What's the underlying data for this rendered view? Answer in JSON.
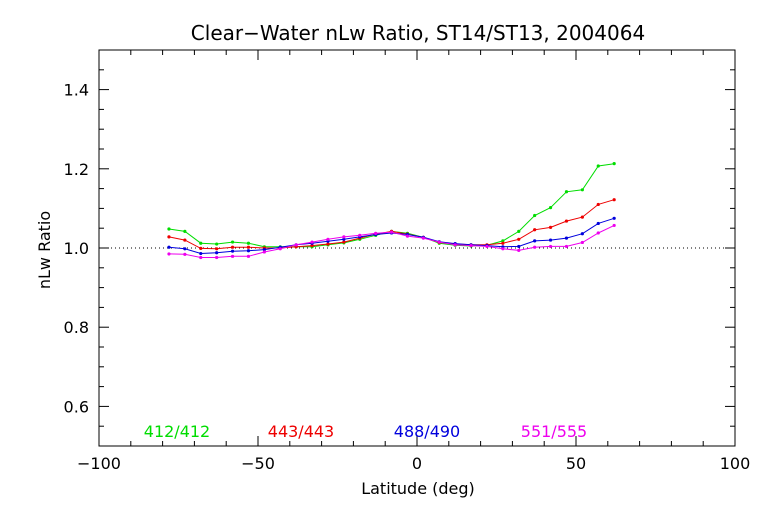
{
  "chart_data": {
    "type": "line",
    "title": "Clear−Water nLw Ratio, ST14/ST13, 2004064",
    "xlabel": "Latitude (deg)",
    "ylabel": "nLw Ratio",
    "xlim": [
      -100,
      100
    ],
    "ylim": [
      0.5,
      1.5
    ],
    "x_ticks": [
      -100,
      -50,
      0,
      50,
      100
    ],
    "x_tick_labels": [
      "−100",
      "−50",
      "0",
      "50",
      "100"
    ],
    "y_ticks": [
      0.6,
      0.8,
      1.0,
      1.2,
      1.4
    ],
    "y_tick_labels": [
      "0.6",
      "0.8",
      "1.0",
      "1.2",
      "1.4"
    ],
    "reference_line": 1.0,
    "grid": false,
    "legend_placement": "bottom, inside plot",
    "x": [
      -78,
      -73,
      -68,
      -63,
      -58,
      -53,
      -48,
      -43,
      -38,
      -33,
      -28,
      -23,
      -18,
      -13,
      -8,
      -3,
      2,
      7,
      12,
      17,
      22,
      27,
      32,
      37,
      42,
      47,
      52,
      57,
      62
    ],
    "series": [
      {
        "name": "412/412",
        "color": "#00dd00",
        "values": [
          1.048,
          1.042,
          1.012,
          1.01,
          1.015,
          1.012,
          1.003,
          1.003,
          1.003,
          1.003,
          1.008,
          1.013,
          1.022,
          1.032,
          1.042,
          1.037,
          1.027,
          1.012,
          1.007,
          1.005,
          1.007,
          1.018,
          1.042,
          1.082,
          1.102,
          1.142,
          1.147,
          1.207,
          1.213
        ]
      },
      {
        "name": "443/443",
        "color": "#ee0000",
        "values": [
          1.028,
          1.02,
          0.999,
          0.998,
          1.002,
          1.002,
          1.0,
          1.0,
          1.003,
          1.006,
          1.01,
          1.015,
          1.025,
          1.035,
          1.042,
          1.035,
          1.027,
          1.014,
          1.01,
          1.008,
          1.008,
          1.012,
          1.022,
          1.046,
          1.052,
          1.068,
          1.078,
          1.11,
          1.122
        ]
      },
      {
        "name": "488/490",
        "color": "#0000dd",
        "values": [
          1.002,
          0.998,
          0.986,
          0.988,
          0.992,
          0.993,
          0.996,
          1.002,
          1.008,
          1.012,
          1.017,
          1.022,
          1.028,
          1.034,
          1.038,
          1.034,
          1.027,
          1.016,
          1.011,
          1.008,
          1.006,
          1.003,
          1.004,
          1.018,
          1.02,
          1.025,
          1.036,
          1.062,
          1.075
        ]
      },
      {
        "name": "551/555",
        "color": "#ee00ee",
        "values": [
          0.985,
          0.984,
          0.976,
          0.976,
          0.979,
          0.979,
          0.99,
          0.998,
          1.008,
          1.015,
          1.022,
          1.028,
          1.032,
          1.037,
          1.04,
          1.03,
          1.025,
          1.015,
          1.008,
          1.006,
          1.004,
          0.998,
          0.994,
          1.002,
          1.004,
          1.004,
          1.014,
          1.038,
          1.057
        ]
      }
    ]
  }
}
